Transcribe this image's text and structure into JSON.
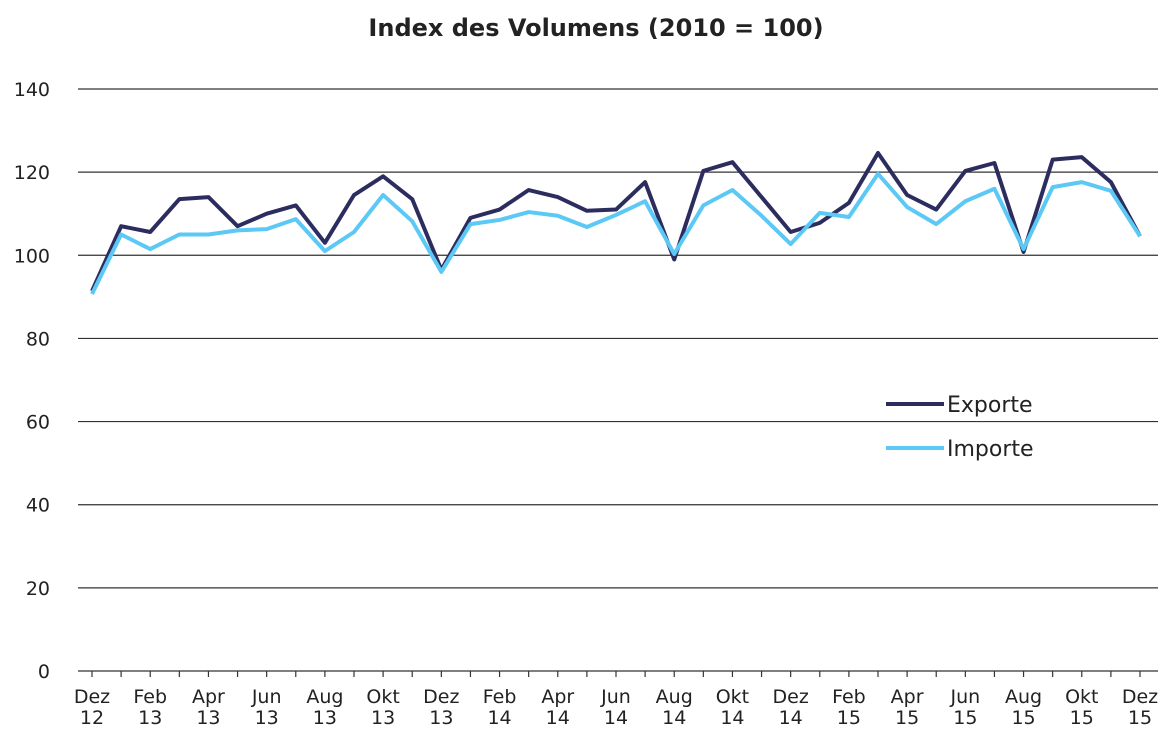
{
  "chart_data": {
    "type": "line",
    "title": "Index des Volumens (2010 = 100)",
    "categories": [
      "Dez 12",
      null,
      "Feb 13",
      null,
      "Apr 13",
      null,
      "Jun 13",
      null,
      "Aug 13",
      null,
      "Okt 13",
      null,
      "Dez 13",
      null,
      "Feb 14",
      null,
      "Apr 14",
      null,
      "Jun 14",
      null,
      "Aug 14",
      null,
      "Okt 14",
      null,
      "Dez 14",
      null,
      "Feb 15",
      null,
      "Apr 15",
      null,
      "Jun 15",
      null,
      "Aug 15",
      null,
      "Okt 15",
      null,
      "Dez 15"
    ],
    "series": [
      {
        "name": "Exporte",
        "color": "#2c2d5e",
        "values": [
          91.4,
          107,
          105.6,
          113.5,
          114,
          107,
          110,
          112,
          103,
          114.5,
          119,
          113.5,
          96.5,
          109,
          111,
          115.7,
          114,
          110.7,
          111,
          117.6,
          99,
          120.3,
          122.4,
          114,
          105.6,
          107.8,
          112.6,
          124.6,
          114.5,
          111,
          120.3,
          122.2,
          100.8,
          123,
          123.6,
          117.6,
          104.6
        ]
      },
      {
        "name": "Importe",
        "color": "#5bc8f5",
        "values": [
          90.7,
          105,
          101.5,
          105,
          105,
          106,
          106.3,
          108.7,
          101,
          105.6,
          114.5,
          108.2,
          96,
          107.5,
          108.5,
          110.4,
          109.5,
          106.8,
          109.7,
          113,
          100.3,
          112,
          115.7,
          109.5,
          102.7,
          110.2,
          109.2,
          119.6,
          111.6,
          107.5,
          113,
          116,
          101.5,
          116.4,
          117.6,
          115.5,
          104.6
        ]
      }
    ],
    "ylim": [
      0,
      140
    ],
    "yticks": [
      0,
      20,
      40,
      60,
      80,
      100,
      120,
      140
    ],
    "grid": true,
    "legend": "right"
  }
}
